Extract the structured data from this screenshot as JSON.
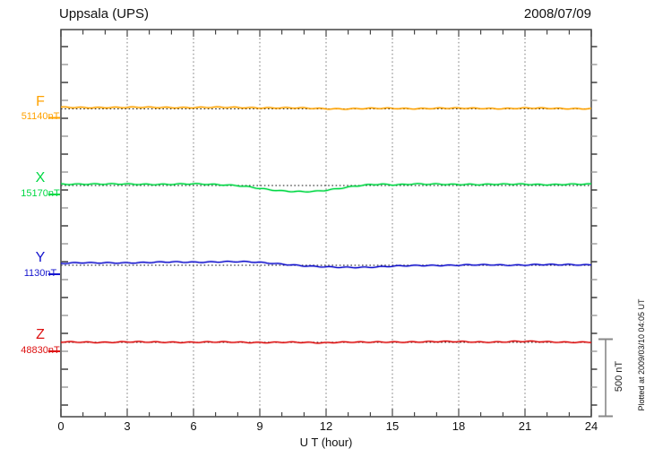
{
  "window": {
    "title": "Uppsala (UPS)",
    "date": "2008/07/09"
  },
  "axes": {
    "xlabel": "U T (hour)",
    "x_tick_labels": [
      "0",
      "3",
      "6",
      "9",
      "12",
      "15",
      "18",
      "21",
      "24"
    ]
  },
  "scale_bar": {
    "label": "500 nT"
  },
  "footer_note": "Plotted at 2009/03/10 04:05 UT",
  "colors": {
    "F": "#FFA200",
    "X": "#00D844",
    "Y": "#1515CE",
    "Z": "#DD1111",
    "frame": "#444444",
    "grid": "#777777",
    "baseline": "#1a1a1a"
  },
  "chart_data": {
    "type": "line",
    "title": "Uppsala (UPS)",
    "date": "2008/07/09",
    "xlabel": "U T (hour)",
    "x_range": [
      0,
      24
    ],
    "x_ticks": [
      0,
      3,
      6,
      9,
      12,
      15,
      18,
      21,
      24
    ],
    "grid": "vertical dotted lines every 3 hours; dotted horizontal reference baseline per trace",
    "scale_bar_nT": 500,
    "series": [
      {
        "name": "F",
        "baseline_label": "51140nT",
        "baseline_nT": 51140,
        "color": "#FFA200",
        "x": [
          0,
          1,
          2,
          3,
          4,
          5,
          6,
          7,
          8,
          9,
          10,
          11,
          12,
          13,
          14,
          15,
          16,
          17,
          18,
          19,
          20,
          21,
          22,
          23,
          24
        ],
        "offset_nT": [
          9,
          9,
          10,
          9,
          9,
          10,
          9,
          9,
          9,
          8,
          6,
          4,
          2,
          1,
          2,
          3,
          3,
          4,
          3,
          4,
          3,
          4,
          3,
          3,
          2
        ]
      },
      {
        "name": "X",
        "baseline_label": "15170nT",
        "baseline_nT": 15170,
        "color": "#00D844",
        "x": [
          0,
          1,
          2,
          3,
          4,
          5,
          6,
          7,
          7.5,
          8,
          8.5,
          9,
          9.5,
          10,
          10.5,
          11,
          11.5,
          12,
          12.5,
          13,
          13.5,
          14,
          14.5,
          15,
          15.5,
          16,
          16.5,
          17,
          17.5,
          18,
          18.5,
          19,
          19.5,
          20,
          21,
          22,
          23,
          24
        ],
        "offset_nT": [
          10,
          10,
          8,
          9,
          9,
          8,
          9,
          7,
          5,
          1,
          -8,
          -20,
          -30,
          -36,
          -38,
          -38,
          -36,
          -30,
          -22,
          -12,
          -2,
          6,
          10,
          6,
          7,
          10,
          7,
          8,
          7,
          8,
          9,
          7,
          8,
          7,
          8,
          7,
          8,
          7
        ]
      },
      {
        "name": "Y",
        "baseline_label": "1130nT",
        "baseline_nT": 1130,
        "color": "#1515CE",
        "x": [
          0,
          0.5,
          1,
          1.5,
          2,
          3,
          4,
          5,
          6,
          6.5,
          7,
          7.5,
          8,
          8.5,
          9,
          9.5,
          10,
          10.5,
          11,
          11.5,
          12,
          12.5,
          13,
          13.5,
          14,
          14.5,
          15,
          15.5,
          16,
          16.5,
          17,
          17.5,
          18,
          18.5,
          19,
          19.5,
          20,
          20.5,
          21,
          21.5,
          22,
          22.5,
          23,
          23.5,
          24
        ],
        "offset_nT": [
          13,
          14,
          15,
          14,
          16,
          17,
          18,
          20,
          21,
          22,
          23,
          23,
          22,
          21,
          18,
          14,
          9,
          3,
          -4,
          -9,
          -12,
          -13,
          -13,
          -12,
          -11,
          -9,
          -7,
          -5,
          -3,
          -1,
          0,
          1,
          1,
          2,
          1,
          2,
          1,
          2,
          3,
          5,
          4,
          2,
          3,
          2,
          4
        ]
      },
      {
        "name": "Z",
        "baseline_label": "48830nT",
        "baseline_nT": 48830,
        "color": "#DD1111",
        "x": [
          0,
          1,
          2,
          3,
          4,
          5,
          6,
          7,
          8,
          9,
          10,
          10.5,
          11,
          11.5,
          12,
          12.5,
          13,
          13.5,
          14,
          15,
          16,
          16.5,
          17,
          17.5,
          18,
          19,
          20,
          20.5,
          21,
          21.5,
          22,
          23,
          24
        ],
        "offset_nT": [
          1,
          2,
          1,
          2,
          1,
          2,
          1,
          1,
          1,
          0,
          0,
          -1,
          -2,
          -3,
          -2,
          2,
          3,
          1,
          0,
          1,
          4,
          5,
          5,
          4,
          3,
          2,
          4,
          6,
          5,
          4,
          2,
          2,
          2
        ]
      }
    ]
  }
}
